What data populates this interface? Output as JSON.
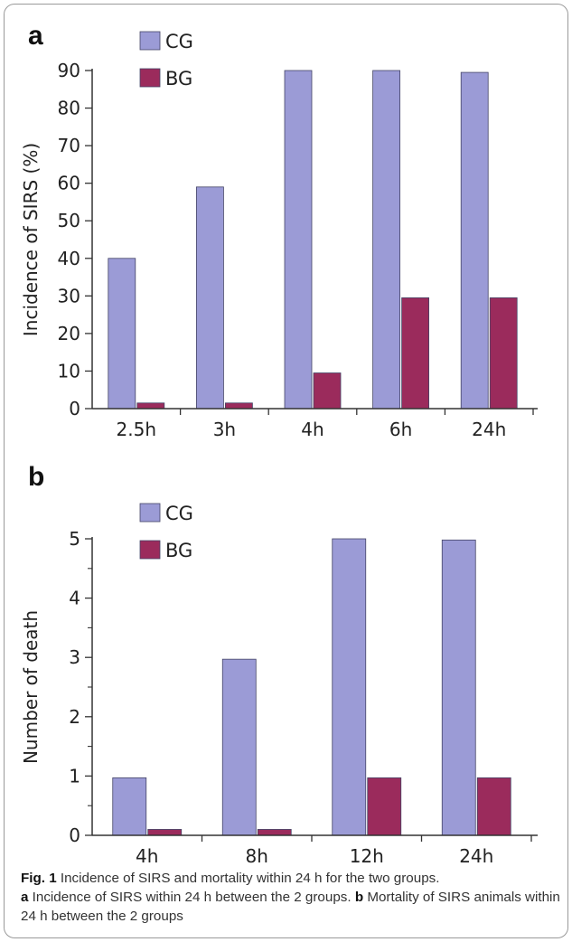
{
  "colors": {
    "CG": "#9b9bd6",
    "BG": "#9b2b5c",
    "axis": "#333333",
    "text": "#222222"
  },
  "panels": [
    {
      "letter": "a",
      "chart_data": {
        "type": "bar",
        "categories": [
          "2.5h",
          "3h",
          "4h",
          "6h",
          "24h"
        ],
        "series": [
          {
            "name": "CG",
            "values": [
              40,
              59,
              90,
              90,
              89.5
            ]
          },
          {
            "name": "BG",
            "values": [
              1.5,
              1.5,
              9.5,
              29.5,
              29.5
            ]
          }
        ],
        "title": "",
        "xlabel": "",
        "ylabel": "Incidence of SIRS (%)",
        "ylim": [
          0,
          90
        ],
        "yticks": [
          0,
          10,
          20,
          30,
          40,
          50,
          60,
          70,
          80,
          90
        ],
        "minor_ticks": false,
        "grid": false,
        "legend": "top-left"
      }
    },
    {
      "letter": "b",
      "chart_data": {
        "type": "bar",
        "categories": [
          "4h",
          "8h",
          "12h",
          "24h"
        ],
        "series": [
          {
            "name": "CG",
            "values": [
              0.97,
              2.97,
              5,
              4.98
            ]
          },
          {
            "name": "BG",
            "values": [
              0.1,
              0.1,
              0.97,
              0.97
            ]
          }
        ],
        "title": "",
        "xlabel": "",
        "ylabel": "Number of death",
        "ylim": [
          0,
          5
        ],
        "yticks": [
          0,
          1,
          2,
          3,
          4,
          5
        ],
        "minor_ticks": true,
        "grid": false,
        "legend": "top-left"
      }
    }
  ],
  "caption": {
    "fig_label": "Fig. 1",
    "fig_text": " Incidence of SIRS and mortality within 24 h for the two groups.",
    "a_label": "a",
    "a_text": " Incidence of SIRS within 24 h between the 2 groups. ",
    "b_label": "b",
    "b_text": " Mortality of SIRS animals within 24 h between the 2 groups"
  }
}
